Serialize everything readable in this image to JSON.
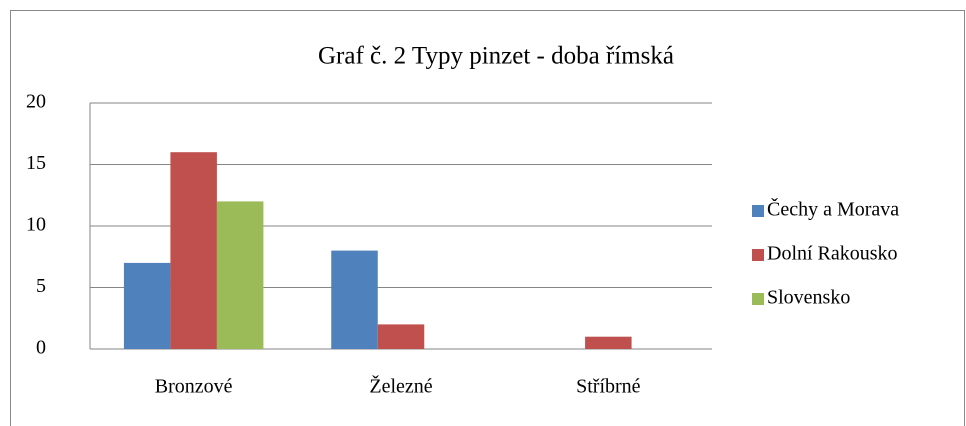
{
  "chart_data": {
    "type": "bar",
    "title": "Graf č. 2 Typy pinzet - doba římská",
    "categories": [
      "Bronzové",
      "Železné",
      "Stříbrné"
    ],
    "series": [
      {
        "name": "Čechy a Morava",
        "color": "#4f81bd",
        "values": [
          7,
          8,
          0
        ]
      },
      {
        "name": "Dolní Rakousko",
        "color": "#c0504d",
        "values": [
          16,
          2,
          1
        ]
      },
      {
        "name": "Slovensko",
        "color": "#9bbb59",
        "values": [
          12,
          0,
          0
        ]
      }
    ],
    "ylim": [
      0,
      20
    ],
    "yticks": [
      0,
      5,
      10,
      15,
      20
    ],
    "grid": true,
    "legend": "right"
  }
}
